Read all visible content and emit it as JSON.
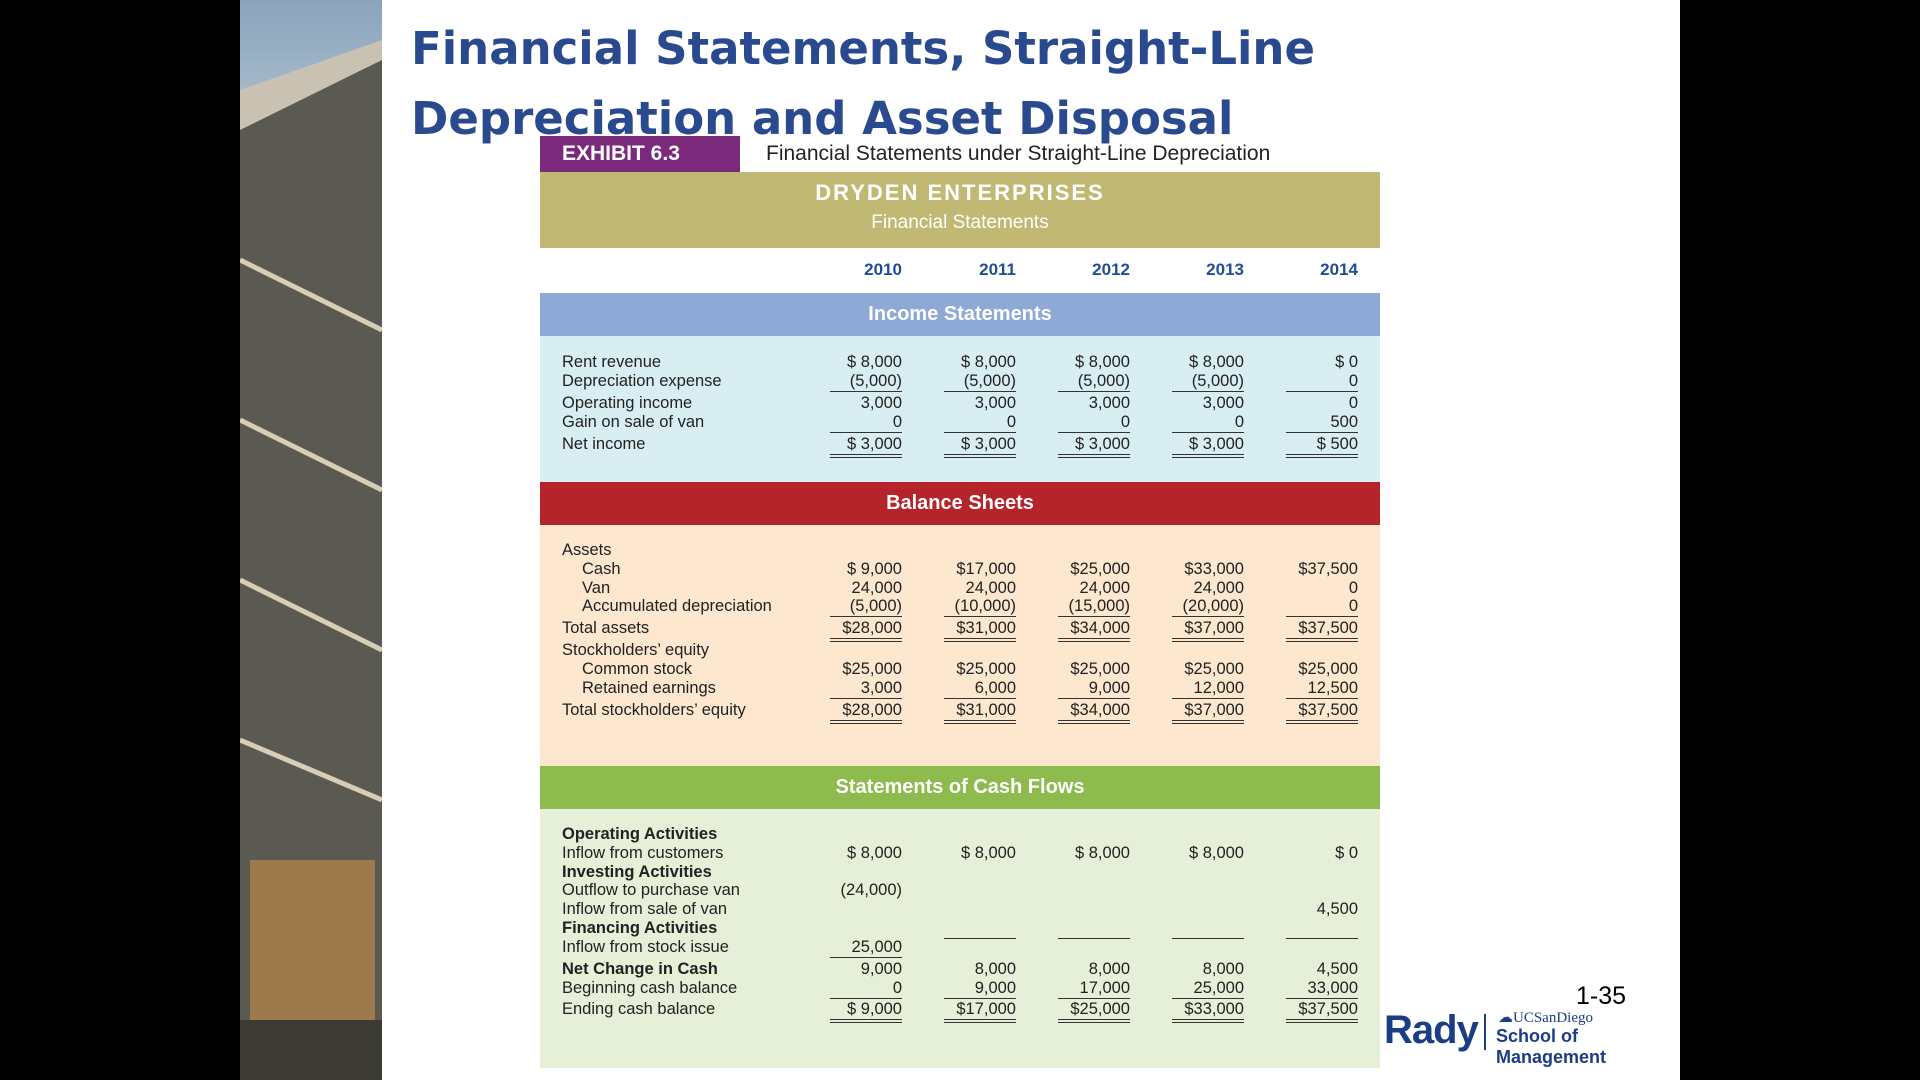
{
  "slide": {
    "title": "Financial Statements, Straight-Line Depreciation and Asset Disposal",
    "page_number": "1-35"
  },
  "logo": {
    "rady": "Rady",
    "ucsd": "UCSanDiego",
    "school": "School of Management"
  },
  "exhibit": {
    "label": "EXHIBIT 6.3",
    "caption": "Financial Statements under Straight-Line Depreciation",
    "company": "DRYDEN ENTERPRISES",
    "subtitle": "Financial Statements",
    "years": [
      "2010",
      "2011",
      "2012",
      "2013",
      "2014"
    ],
    "income_header": "Income Statements",
    "income_rows": [
      {
        "label": "Rent revenue",
        "values": [
          "$ 8,000",
          "$ 8,000",
          "$ 8,000",
          "$ 8,000",
          "$       0"
        ]
      },
      {
        "label": "Depreciation expense",
        "values": [
          "(5,000)",
          "(5,000)",
          "(5,000)",
          "(5,000)",
          "0"
        ]
      },
      {
        "label": "Operating income",
        "values": [
          "3,000",
          "3,000",
          "3,000",
          "3,000",
          "0"
        ]
      },
      {
        "label": "Gain on sale of van",
        "values": [
          "0",
          "0",
          "0",
          "0",
          "500"
        ]
      },
      {
        "label": "Net income",
        "values": [
          "$ 3,000",
          "$ 3,000",
          "$ 3,000",
          "$ 3,000",
          "$    500"
        ]
      }
    ],
    "balance_header": "Balance Sheets",
    "balance_rows": [
      {
        "label": "Assets",
        "values": [
          "",
          "",
          "",
          "",
          ""
        ]
      },
      {
        "label": "Cash",
        "values": [
          "$ 9,000",
          "$17,000",
          "$25,000",
          "$33,000",
          "$37,500"
        ]
      },
      {
        "label": "Van",
        "values": [
          "24,000",
          "24,000",
          "24,000",
          "24,000",
          "0"
        ]
      },
      {
        "label": "Accumulated depreciation",
        "values": [
          "(5,000)",
          "(10,000)",
          "(15,000)",
          "(20,000)",
          "0"
        ]
      },
      {
        "label": "Total assets",
        "values": [
          "$28,000",
          "$31,000",
          "$34,000",
          "$37,000",
          "$37,500"
        ]
      },
      {
        "label": "Stockholders’ equity",
        "values": [
          "",
          "",
          "",
          "",
          ""
        ]
      },
      {
        "label": "Common stock",
        "values": [
          "$25,000",
          "$25,000",
          "$25,000",
          "$25,000",
          "$25,000"
        ]
      },
      {
        "label": "Retained earnings",
        "values": [
          "3,000",
          "6,000",
          "9,000",
          "12,000",
          "12,500"
        ]
      },
      {
        "label": "Total stockholders’ equity",
        "values": [
          "$28,000",
          "$31,000",
          "$34,000",
          "$37,000",
          "$37,500"
        ]
      }
    ],
    "cashflow_header": "Statements of Cash Flows",
    "cashflow_rows": [
      {
        "label": "Operating Activities",
        "values": [
          "",
          "",
          "",
          "",
          ""
        ]
      },
      {
        "label": "Inflow from customers",
        "values": [
          "$ 8,000",
          "$ 8,000",
          "$ 8,000",
          "$ 8,000",
          "$      0"
        ]
      },
      {
        "label": "Investing Activities",
        "values": [
          "",
          "",
          "",
          "",
          ""
        ]
      },
      {
        "label": "Outflow to purchase van",
        "values": [
          "(24,000)",
          "",
          "",
          "",
          ""
        ]
      },
      {
        "label": "Inflow from sale of van",
        "values": [
          "",
          "",
          "",
          "",
          "4,500"
        ]
      },
      {
        "label": "Financing Activities",
        "values": [
          "",
          "",
          "",
          "",
          ""
        ]
      },
      {
        "label": "Inflow from stock issue",
        "values": [
          "25,000",
          "",
          "",
          "",
          ""
        ]
      },
      {
        "label": "Net Change in Cash",
        "values": [
          "9,000",
          "8,000",
          "8,000",
          "8,000",
          "4,500"
        ]
      },
      {
        "label": "Beginning cash balance",
        "values": [
          "0",
          "9,000",
          "17,000",
          "25,000",
          "33,000"
        ]
      },
      {
        "label": "Ending cash balance",
        "values": [
          "$ 9,000",
          "$17,000",
          "$25,000",
          "$33,000",
          "$37,500"
        ]
      }
    ]
  }
}
